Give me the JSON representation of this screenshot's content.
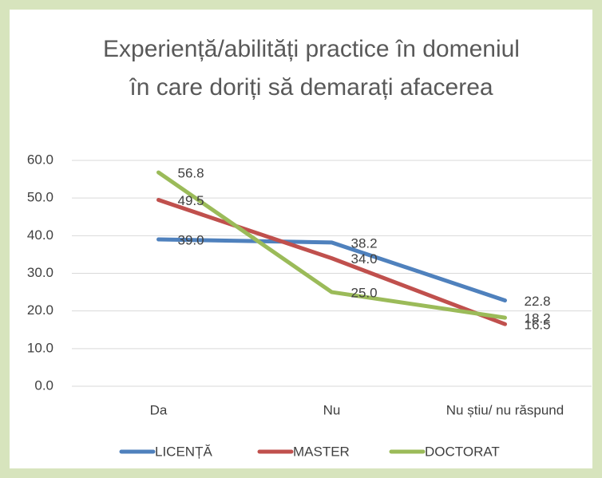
{
  "chart_data": {
    "type": "line",
    "title": "Experiență/abilități practice în domeniul în care doriți să demarați afacerea",
    "categories": [
      "Da",
      "Nu",
      "Nu știu/ nu răspund"
    ],
    "series": [
      {
        "name": "LICENȚĂ",
        "color": "#4f81bd",
        "values": [
          39.0,
          38.2,
          22.8
        ],
        "value_labels": [
          "39.0",
          "38.2",
          "22.8"
        ]
      },
      {
        "name": "MASTER",
        "color": "#c0504d",
        "values": [
          49.5,
          34.0,
          16.5
        ],
        "value_labels": [
          "49.5",
          "34.0",
          "16.5"
        ]
      },
      {
        "name": "DOCTORAT",
        "color": "#9bbb59",
        "values": [
          56.8,
          25.0,
          18.2
        ],
        "value_labels": [
          "56.8",
          "25.0",
          "18.2"
        ]
      }
    ],
    "ylim": [
      0,
      60
    ],
    "yticks": [
      {
        "value": 0,
        "label": "0.0"
      },
      {
        "value": 10,
        "label": "10.0"
      },
      {
        "value": 20,
        "label": "20.0"
      },
      {
        "value": 30,
        "label": "30.0"
      },
      {
        "value": 40,
        "label": "40.0"
      },
      {
        "value": 50,
        "label": "50.0"
      },
      {
        "value": 60,
        "label": "60.0"
      }
    ],
    "grid": true,
    "legend": "bottom"
  }
}
